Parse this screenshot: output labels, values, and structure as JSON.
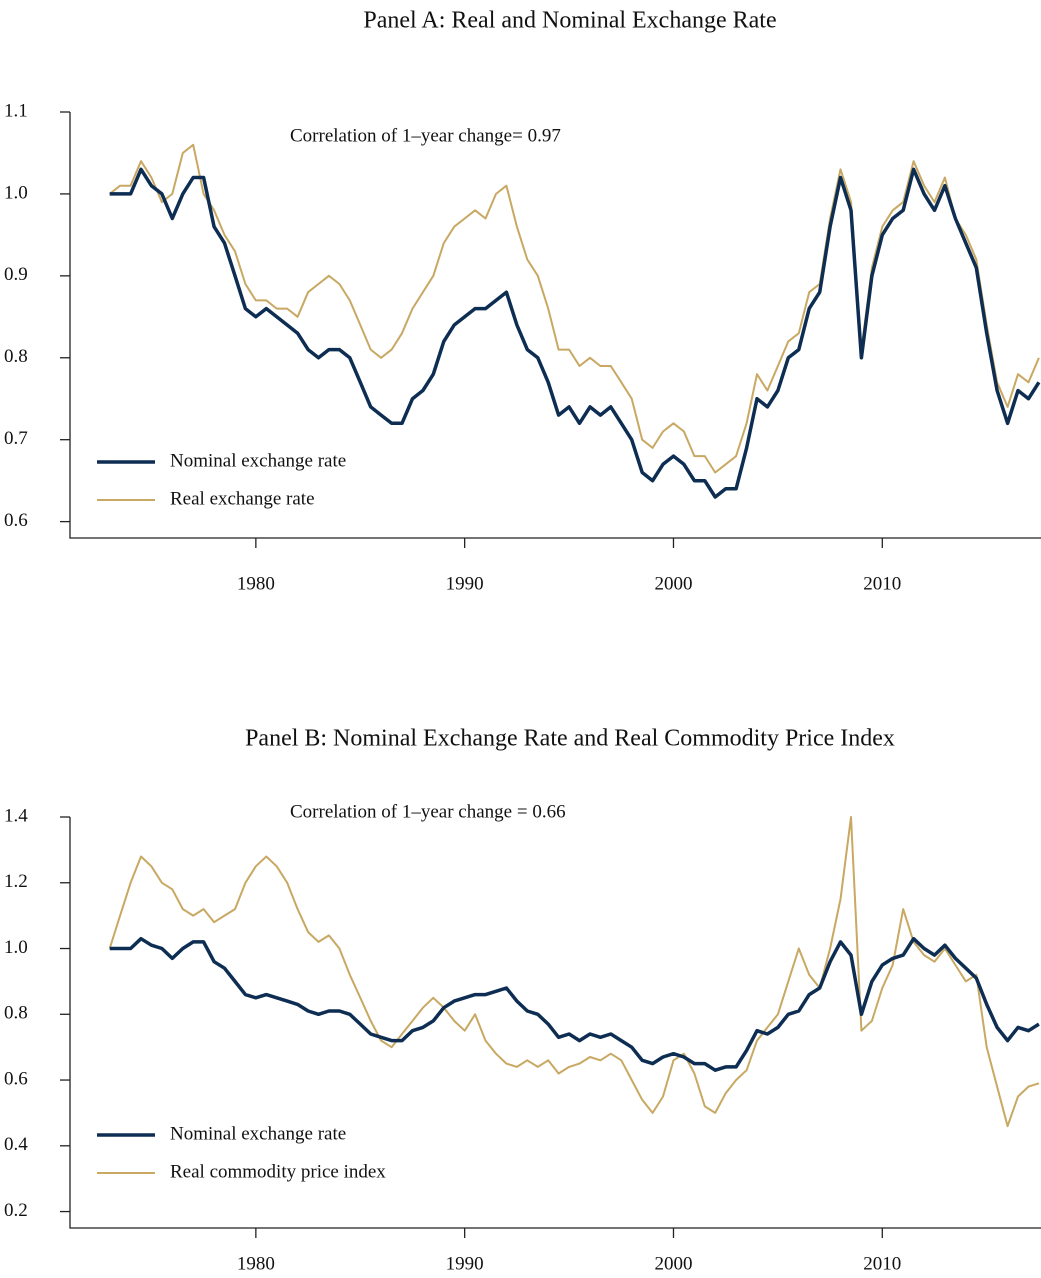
{
  "chart_data": [
    {
      "type": "line",
      "title": "Panel A: Real and Nominal Exchange Rate",
      "annotation": "Correlation of 1–year change= 0.97",
      "legend": "lower left",
      "xlim": [
        1971.1,
        2017.6
      ],
      "xticks": [
        1980,
        1990,
        2000,
        2010
      ],
      "ylim": [
        0.58,
        1.1
      ],
      "yticks": [
        0.6,
        0.7,
        0.8,
        0.9,
        {
          "value": 1,
          "label": "1.0"
        },
        1.1
      ],
      "x": [
        1973,
        1973.5,
        1974,
        1974.5,
        1975,
        1975.5,
        1976,
        1976.5,
        1977,
        1977.5,
        1978,
        1978.5,
        1979,
        1979.5,
        1980,
        1980.5,
        1981,
        1981.5,
        1982,
        1982.5,
        1983,
        1983.5,
        1984,
        1984.5,
        1985,
        1985.5,
        1986,
        1986.5,
        1987,
        1987.5,
        1988,
        1988.5,
        1989,
        1989.5,
        1990,
        1990.5,
        1991,
        1991.5,
        1992,
        1992.5,
        1993,
        1993.5,
        1994,
        1994.5,
        1995,
        1995.5,
        1996,
        1996.5,
        1997,
        1997.5,
        1998,
        1998.5,
        1999,
        1999.5,
        2000,
        2000.5,
        2001,
        2001.5,
        2002,
        2002.5,
        2003,
        2003.5,
        2004,
        2004.5,
        2005,
        2005.5,
        2006,
        2006.5,
        2007,
        2007.5,
        2008,
        2008.5,
        2009,
        2009.5,
        2010,
        2010.5,
        2011,
        2011.5,
        2012,
        2012.5,
        2013,
        2013.5,
        2014,
        2014.5,
        2015,
        2015.5,
        2016,
        2016.5,
        2017,
        2017.5
      ],
      "series": [
        {
          "name": "Nominal exchange rate",
          "color": "#0d2d52",
          "width": 3.5,
          "values": [
            1.0,
            1.0,
            1.0,
            1.03,
            1.01,
            1.0,
            0.97,
            1.0,
            1.02,
            1.02,
            0.96,
            0.94,
            0.9,
            0.86,
            0.85,
            0.86,
            0.85,
            0.84,
            0.83,
            0.81,
            0.8,
            0.81,
            0.81,
            0.8,
            0.77,
            0.74,
            0.73,
            0.72,
            0.72,
            0.75,
            0.76,
            0.78,
            0.82,
            0.84,
            0.85,
            0.86,
            0.86,
            0.87,
            0.88,
            0.84,
            0.81,
            0.8,
            0.77,
            0.73,
            0.74,
            0.72,
            0.74,
            0.73,
            0.74,
            0.72,
            0.7,
            0.66,
            0.65,
            0.67,
            0.68,
            0.67,
            0.65,
            0.65,
            0.63,
            0.64,
            0.64,
            0.69,
            0.75,
            0.74,
            0.76,
            0.8,
            0.81,
            0.86,
            0.88,
            0.96,
            1.02,
            0.98,
            0.8,
            0.9,
            0.95,
            0.97,
            0.98,
            1.03,
            1.0,
            0.98,
            1.01,
            0.97,
            0.94,
            0.91,
            0.83,
            0.76,
            0.72,
            0.76,
            0.75,
            0.77
          ]
        },
        {
          "name": "Real exchange rate",
          "color": "#c8a862",
          "width": 2,
          "values": [
            1.0,
            1.01,
            1.01,
            1.04,
            1.02,
            0.99,
            1.0,
            1.05,
            1.06,
            1.0,
            0.98,
            0.95,
            0.93,
            0.89,
            0.87,
            0.87,
            0.86,
            0.86,
            0.85,
            0.88,
            0.89,
            0.9,
            0.89,
            0.87,
            0.84,
            0.81,
            0.8,
            0.81,
            0.83,
            0.86,
            0.88,
            0.9,
            0.94,
            0.96,
            0.97,
            0.98,
            0.97,
            1.0,
            1.01,
            0.96,
            0.92,
            0.9,
            0.86,
            0.81,
            0.81,
            0.79,
            0.8,
            0.79,
            0.79,
            0.77,
            0.75,
            0.7,
            0.69,
            0.71,
            0.72,
            0.71,
            0.68,
            0.68,
            0.66,
            0.67,
            0.68,
            0.72,
            0.78,
            0.76,
            0.79,
            0.82,
            0.83,
            0.88,
            0.89,
            0.97,
            1.03,
            0.99,
            0.81,
            0.91,
            0.96,
            0.98,
            0.99,
            1.04,
            1.01,
            0.99,
            1.02,
            0.97,
            0.95,
            0.92,
            0.84,
            0.77,
            0.74,
            0.78,
            0.77,
            0.8
          ]
        }
      ]
    },
    {
      "type": "line",
      "title": "Panel B: Nominal Exchange Rate and Real Commodity Price Index",
      "annotation": "Correlation of 1–year change = 0.66",
      "legend": "lower left",
      "xlim": [
        1971.1,
        2017.6
      ],
      "xticks": [
        1980,
        1990,
        2000,
        2010
      ],
      "ylim": [
        0.15,
        1.4
      ],
      "yticks": [
        0.2,
        0.4,
        0.6,
        0.8,
        {
          "value": 1,
          "label": "1.0"
        },
        1.2,
        1.4
      ],
      "x": [
        1973,
        1973.5,
        1974,
        1974.5,
        1975,
        1975.5,
        1976,
        1976.5,
        1977,
        1977.5,
        1978,
        1978.5,
        1979,
        1979.5,
        1980,
        1980.5,
        1981,
        1981.5,
        1982,
        1982.5,
        1983,
        1983.5,
        1984,
        1984.5,
        1985,
        1985.5,
        1986,
        1986.5,
        1987,
        1987.5,
        1988,
        1988.5,
        1989,
        1989.5,
        1990,
        1990.5,
        1991,
        1991.5,
        1992,
        1992.5,
        1993,
        1993.5,
        1994,
        1994.5,
        1995,
        1995.5,
        1996,
        1996.5,
        1997,
        1997.5,
        1998,
        1998.5,
        1999,
        1999.5,
        2000,
        2000.5,
        2001,
        2001.5,
        2002,
        2002.5,
        2003,
        2003.5,
        2004,
        2004.5,
        2005,
        2005.5,
        2006,
        2006.5,
        2007,
        2007.5,
        2008,
        2008.5,
        2009,
        2009.5,
        2010,
        2010.5,
        2011,
        2011.5,
        2012,
        2012.5,
        2013,
        2013.5,
        2014,
        2014.5,
        2015,
        2015.5,
        2016,
        2016.5,
        2017,
        2017.5
      ],
      "series": [
        {
          "name": "Nominal exchange rate",
          "color": "#0d2d52",
          "width": 3.5,
          "values": [
            1.0,
            1.0,
            1.0,
            1.03,
            1.01,
            1.0,
            0.97,
            1.0,
            1.02,
            1.02,
            0.96,
            0.94,
            0.9,
            0.86,
            0.85,
            0.86,
            0.85,
            0.84,
            0.83,
            0.81,
            0.8,
            0.81,
            0.81,
            0.8,
            0.77,
            0.74,
            0.73,
            0.72,
            0.72,
            0.75,
            0.76,
            0.78,
            0.82,
            0.84,
            0.85,
            0.86,
            0.86,
            0.87,
            0.88,
            0.84,
            0.81,
            0.8,
            0.77,
            0.73,
            0.74,
            0.72,
            0.74,
            0.73,
            0.74,
            0.72,
            0.7,
            0.66,
            0.65,
            0.67,
            0.68,
            0.67,
            0.65,
            0.65,
            0.63,
            0.64,
            0.64,
            0.69,
            0.75,
            0.74,
            0.76,
            0.8,
            0.81,
            0.86,
            0.88,
            0.96,
            1.02,
            0.98,
            0.8,
            0.9,
            0.95,
            0.97,
            0.98,
            1.03,
            1.0,
            0.98,
            1.01,
            0.97,
            0.94,
            0.91,
            0.83,
            0.76,
            0.72,
            0.76,
            0.75,
            0.77
          ]
        },
        {
          "name": "Real commodity price index",
          "color": "#c8a862",
          "width": 2,
          "values": [
            1.0,
            1.1,
            1.2,
            1.28,
            1.25,
            1.2,
            1.18,
            1.12,
            1.1,
            1.12,
            1.08,
            1.1,
            1.12,
            1.2,
            1.25,
            1.28,
            1.25,
            1.2,
            1.12,
            1.05,
            1.02,
            1.04,
            1.0,
            0.92,
            0.85,
            0.78,
            0.72,
            0.7,
            0.74,
            0.78,
            0.82,
            0.85,
            0.82,
            0.78,
            0.75,
            0.8,
            0.72,
            0.68,
            0.65,
            0.64,
            0.66,
            0.64,
            0.66,
            0.62,
            0.64,
            0.65,
            0.67,
            0.66,
            0.68,
            0.66,
            0.6,
            0.54,
            0.5,
            0.55,
            0.66,
            0.68,
            0.62,
            0.52,
            0.5,
            0.56,
            0.6,
            0.63,
            0.72,
            0.76,
            0.8,
            0.9,
            1.0,
            0.92,
            0.88,
            1.0,
            1.15,
            1.4,
            0.75,
            0.78,
            0.88,
            0.95,
            1.12,
            1.02,
            0.98,
            0.96,
            1.0,
            0.95,
            0.9,
            0.92,
            0.7,
            0.58,
            0.46,
            0.55,
            0.58,
            0.59
          ]
        }
      ]
    }
  ]
}
